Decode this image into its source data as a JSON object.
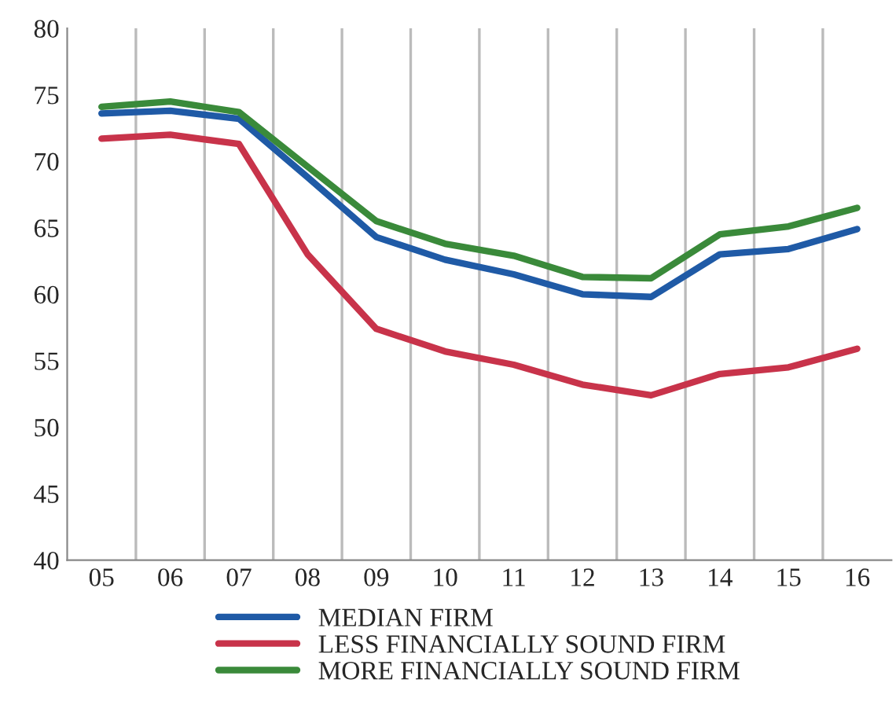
{
  "chart_data": {
    "type": "line",
    "categories": [
      "05",
      "06",
      "07",
      "08",
      "09",
      "10",
      "11",
      "12",
      "13",
      "14",
      "15",
      "16"
    ],
    "series": [
      {
        "name": "MEDIAN FIRM",
        "color": "#1f5aa6",
        "values": [
          73.6,
          73.8,
          73.2,
          68.8,
          64.3,
          62.6,
          61.5,
          60.0,
          59.8,
          63.0,
          63.4,
          64.9
        ]
      },
      {
        "name": "LESS FINANCIALLY SOUND FIRM",
        "color": "#c8334a",
        "values": [
          71.7,
          72.0,
          71.3,
          63.0,
          57.4,
          55.7,
          54.7,
          53.2,
          52.4,
          54.0,
          54.5,
          55.9
        ]
      },
      {
        "name": "MORE FINANCIALLY SOUND FIRM",
        "color": "#3a8a3a",
        "values": [
          74.1,
          74.5,
          73.7,
          69.6,
          65.5,
          63.8,
          62.9,
          61.3,
          61.2,
          64.5,
          65.1,
          66.5
        ]
      }
    ],
    "ylim": [
      40,
      80
    ],
    "yticks": [
      40,
      45,
      50,
      55,
      60,
      65,
      70,
      75,
      80
    ],
    "grid": "x",
    "legend": "bottom",
    "marker": "none",
    "line_style": "solid"
  }
}
